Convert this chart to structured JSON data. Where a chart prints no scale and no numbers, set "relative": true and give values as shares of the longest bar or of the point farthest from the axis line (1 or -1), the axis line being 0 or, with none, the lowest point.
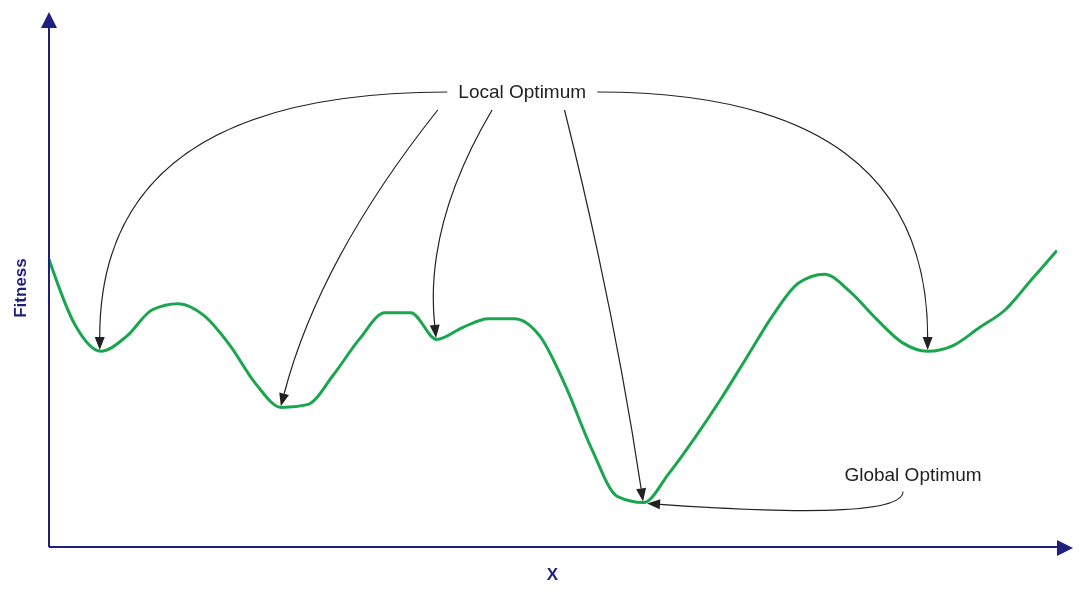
{
  "chart_data": {
    "type": "line",
    "relative": true,
    "xlabel": "X",
    "ylabel": "Fitness",
    "marker": "none",
    "categories": [
      null,
      null,
      null,
      null,
      null,
      null,
      null,
      null,
      null,
      null,
      null,
      null,
      null,
      null,
      null,
      null,
      null,
      null,
      null,
      null,
      null,
      null,
      null,
      null,
      null,
      null,
      null,
      null,
      null,
      null,
      null,
      null,
      null,
      null,
      null,
      null,
      null,
      null,
      null,
      null
    ],
    "series": [
      {
        "color": "#1aa64f",
        "values": [
          0.97,
          0.75,
          0.66,
          0.71,
          0.8,
          0.82,
          0.78,
          0.68,
          0.55,
          0.47,
          0.48,
          0.58,
          0.7,
          0.79,
          0.79,
          0.7,
          0.74,
          0.77,
          0.77,
          0.71,
          0.54,
          0.33,
          0.17,
          0.15,
          0.25,
          0.37,
          0.5,
          0.64,
          0.78,
          0.89,
          0.92,
          0.86,
          0.77,
          0.69,
          0.66,
          0.68,
          0.74,
          0.8,
          0.9,
          1
        ]
      }
    ],
    "annotations": [
      "Local Optimum",
      "Global Optimum"
    ]
  }
}
